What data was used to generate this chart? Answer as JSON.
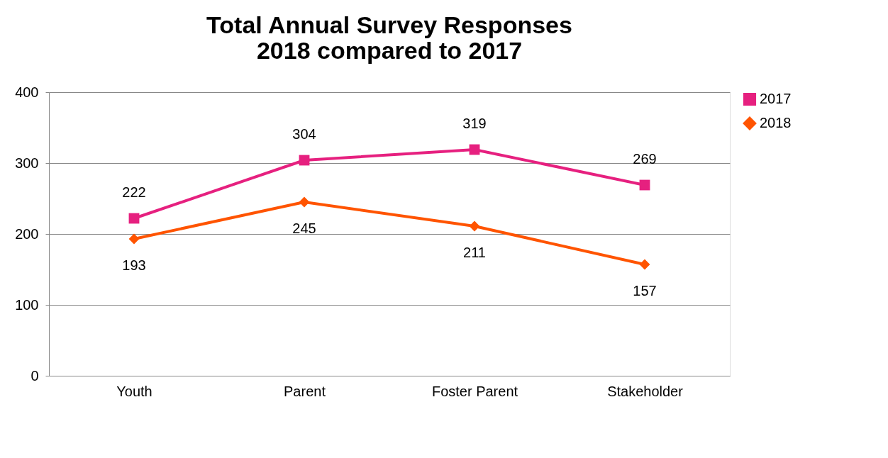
{
  "chart_data": {
    "type": "line",
    "title": [
      "Total Annual Survey Responses",
      "2018 compared to 2017"
    ],
    "categories": [
      "Youth",
      "Parent",
      "Foster Parent",
      "Stakeholder"
    ],
    "series": [
      {
        "name": "2017",
        "color": "#e6207f",
        "marker": "square",
        "values": [
          222,
          304,
          319,
          269
        ]
      },
      {
        "name": "2018",
        "color": "#ff5400",
        "marker": "diamond",
        "values": [
          193,
          245,
          211,
          157
        ]
      }
    ],
    "ylim": [
      0,
      400
    ],
    "yticks": [
      0,
      100,
      200,
      300,
      400
    ],
    "grid": "y",
    "legend": "right",
    "data_labels": true,
    "line_style": "solid"
  }
}
